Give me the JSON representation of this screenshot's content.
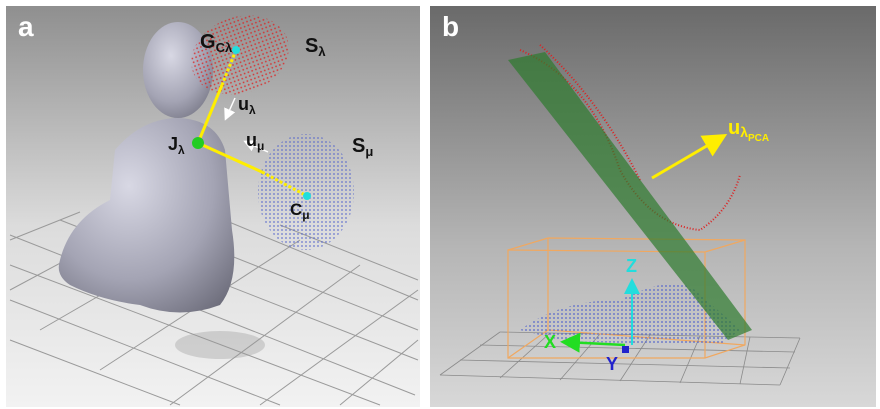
{
  "panels": [
    {
      "label": "a",
      "annotations": [
        {
          "base": "G",
          "sub": "Cλ"
        },
        {
          "base": "S",
          "sub": "λ"
        },
        {
          "base": "u",
          "sub": "λ"
        },
        {
          "base": "J",
          "sub": "λ"
        },
        {
          "base": "u",
          "sub": "μ"
        },
        {
          "base": "S",
          "sub": "μ"
        },
        {
          "base": "C",
          "sub": "μ"
        }
      ]
    },
    {
      "label": "b",
      "annotations": [
        {
          "base": "u",
          "sub": "λ",
          "subsub": "PCA"
        },
        {
          "base": "Z"
        },
        {
          "base": "X"
        },
        {
          "base": "Y"
        }
      ]
    }
  ]
}
